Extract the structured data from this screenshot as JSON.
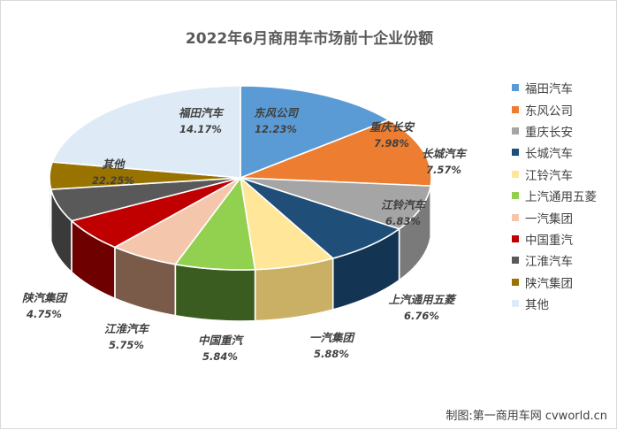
{
  "chart_data": {
    "type": "pie",
    "title": "2022年6月商用车市场前十企业份额",
    "slices": [
      {
        "label": "福田汽车",
        "value": 14.17,
        "pct_label": "14.17%",
        "color": "#5b9bd5",
        "side": "#3f74a6"
      },
      {
        "label": "东风公司",
        "value": 12.23,
        "pct_label": "12.23%",
        "color": "#ed7d31",
        "side": "#b85d1f"
      },
      {
        "label": "重庆长安",
        "value": 7.98,
        "pct_label": "7.98%",
        "color": "#a5a5a5",
        "side": "#7a7a7a"
      },
      {
        "label": "长城汽车",
        "value": 7.57,
        "pct_label": "7.57%",
        "color": "#1f4e79",
        "side": "#143454"
      },
      {
        "label": "江铃汽车",
        "value": 6.83,
        "pct_label": "6.83%",
        "color": "#ffe699",
        "side": "#c9b064"
      },
      {
        "label": "上汽通用五菱",
        "value": 6.76,
        "pct_label": "6.76%",
        "color": "#92d050",
        "side": "#3a5c20"
      },
      {
        "label": "一汽集团",
        "value": 5.88,
        "pct_label": "5.88%",
        "color": "#f4c7ad",
        "side": "#7a5a48"
      },
      {
        "label": "中国重汽",
        "value": 5.84,
        "pct_label": "5.84%",
        "color": "#c00000",
        "side": "#6e0000"
      },
      {
        "label": "江淮汽车",
        "value": 5.75,
        "pct_label": "5.75%",
        "color": "#595959",
        "side": "#3a3a3a"
      },
      {
        "label": "陕汽集团",
        "value": 4.75,
        "pct_label": "4.75%",
        "color": "#997300",
        "side": "#6a5000"
      },
      {
        "label": "其他",
        "value": 22.25,
        "pct_label": "22.25%",
        "color": "#deebf7",
        "side": "#a9b9c9"
      }
    ],
    "legend_position": "right"
  },
  "credit": "制图:第一商用车网 cvworld.cn"
}
